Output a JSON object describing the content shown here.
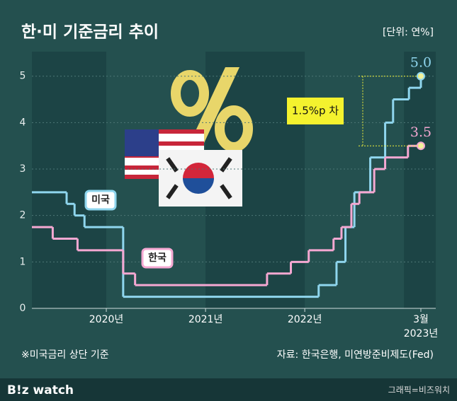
{
  "title": "한·미 기준금리 추이",
  "unit": "[단위: 연%]",
  "footnote": "※미국금리 상단 기준",
  "source": "자료: 한국은행, 미연방준비제도(Fed)",
  "brand": "B!z watch",
  "credit": "그래픽=비즈워치",
  "chart_data": {
    "type": "step",
    "xlim": [
      2019.25,
      2023.32
    ],
    "ylim": [
      0,
      5.3
    ],
    "xticks": [
      {
        "value": 2020,
        "label": "2020년"
      },
      {
        "value": 2021,
        "label": "2021년"
      },
      {
        "value": 2022,
        "label": "2022년"
      },
      {
        "value": 2023.17,
        "label": "3월"
      }
    ],
    "last_xtick_year": "2023년",
    "yticks": [
      0,
      1,
      2,
      3,
      4,
      5
    ],
    "grid": true,
    "annotation": "1.5%p 차",
    "series": [
      {
        "name": "미국",
        "color": "#8fd6ee",
        "x": [
          2019.25,
          2019.6,
          2019.68,
          2019.78,
          2020.17,
          2022.14,
          2022.32,
          2022.41,
          2022.5,
          2022.66,
          2022.81,
          2022.89,
          2023.05,
          2023.17
        ],
        "values": [
          2.5,
          2.25,
          2.0,
          1.75,
          0.25,
          0.5,
          1.0,
          1.75,
          2.5,
          3.25,
          4.0,
          4.5,
          4.75,
          5.0
        ],
        "value_labels": [
          null,
          null,
          null,
          null,
          null,
          null,
          null,
          null,
          null,
          null,
          null,
          null,
          null,
          "5.0"
        ]
      },
      {
        "name": "한국",
        "color": "#f5a8d2",
        "x": [
          2019.25,
          2019.46,
          2019.71,
          2020.17,
          2020.29,
          2021.62,
          2021.86,
          2022.04,
          2022.29,
          2022.37,
          2022.47,
          2022.55,
          2022.7,
          2022.81,
          2023.04,
          2023.17
        ],
        "values": [
          1.75,
          1.5,
          1.25,
          0.75,
          0.5,
          0.75,
          1.0,
          1.25,
          1.5,
          1.75,
          2.25,
          2.5,
          3.0,
          3.25,
          3.5,
          3.5
        ],
        "value_labels": [
          null,
          null,
          null,
          null,
          null,
          null,
          null,
          null,
          null,
          null,
          null,
          null,
          null,
          null,
          null,
          "3.5"
        ]
      }
    ]
  }
}
